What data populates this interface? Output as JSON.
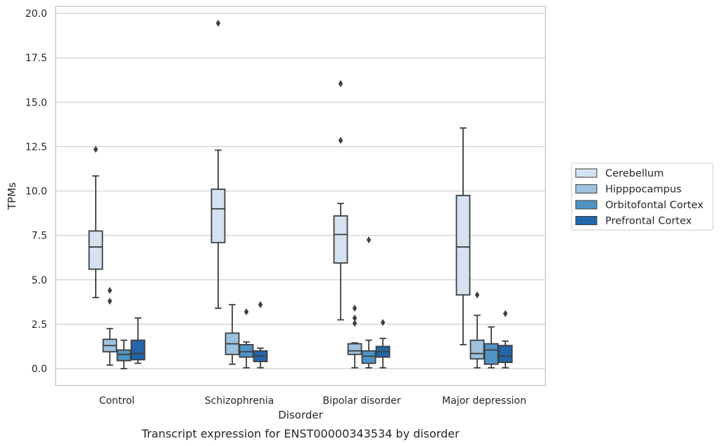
{
  "chart_data": {
    "type": "boxplot",
    "title": "",
    "caption": "Transcript expression for ENST00000343534 by disorder",
    "xlabel": "Disorder",
    "ylabel": "TPMs",
    "ylim": [
      -0.95,
      20.4
    ],
    "yticks": [
      "0.0",
      "2.5",
      "5.0",
      "7.5",
      "10.0",
      "12.5",
      "15.0",
      "17.5",
      "20.0"
    ],
    "grid": "horizontal",
    "legend_position": "right",
    "categories": [
      "Control",
      "Schizophrenia",
      "Bipolar disorder",
      "Major depression"
    ],
    "series": [
      {
        "name": "Cerebellum",
        "color": "#d4e2f1",
        "boxes": [
          {
            "q1": 5.6,
            "median": 6.85,
            "q3": 7.75,
            "whisker_low": 4.0,
            "whisker_high": 10.85,
            "outliers": [
              12.35
            ]
          },
          {
            "q1": 7.1,
            "median": 9.0,
            "q3": 10.1,
            "whisker_low": 3.4,
            "whisker_high": 12.3,
            "outliers": [
              19.45
            ]
          },
          {
            "q1": 5.95,
            "median": 7.55,
            "q3": 8.6,
            "whisker_low": 2.75,
            "whisker_high": 9.3,
            "outliers": [
              12.85,
              16.05
            ]
          },
          {
            "q1": 4.15,
            "median": 6.85,
            "q3": 9.75,
            "whisker_low": 1.35,
            "whisker_high": 13.55,
            "outliers": []
          }
        ]
      },
      {
        "name": "Hipppocampus",
        "color": "#9dc2de",
        "boxes": [
          {
            "q1": 0.95,
            "median": 1.3,
            "q3": 1.65,
            "whisker_low": 0.2,
            "whisker_high": 2.25,
            "outliers": [
              3.8,
              4.4
            ]
          },
          {
            "q1": 0.8,
            "median": 1.4,
            "q3": 2.0,
            "whisker_low": 0.25,
            "whisker_high": 3.6,
            "outliers": []
          },
          {
            "q1": 0.8,
            "median": 1.0,
            "q3": 1.4,
            "whisker_low": 0.05,
            "whisker_high": 1.45,
            "outliers": [
              2.55,
              2.85,
              3.4
            ]
          },
          {
            "q1": 0.55,
            "median": 0.85,
            "q3": 1.6,
            "whisker_low": 0.05,
            "whisker_high": 3.0,
            "outliers": [
              4.15
            ]
          }
        ]
      },
      {
        "name": "Orbitofontal Cortex",
        "color": "#5094c6",
        "boxes": [
          {
            "q1": 0.45,
            "median": 0.8,
            "q3": 1.05,
            "whisker_low": 0.0,
            "whisker_high": 1.6,
            "outliers": []
          },
          {
            "q1": 0.65,
            "median": 0.95,
            "q3": 1.35,
            "whisker_low": 0.05,
            "whisker_high": 1.5,
            "outliers": [
              3.2
            ]
          },
          {
            "q1": 0.3,
            "median": 0.7,
            "q3": 1.0,
            "whisker_low": 0.05,
            "whisker_high": 1.6,
            "outliers": [
              7.25
            ]
          },
          {
            "q1": 0.25,
            "median": 1.05,
            "q3": 1.4,
            "whisker_low": 0.05,
            "whisker_high": 2.35,
            "outliers": []
          }
        ]
      },
      {
        "name": "Prefrontal Cortex",
        "color": "#2366ac",
        "boxes": [
          {
            "q1": 0.5,
            "median": 0.85,
            "q3": 1.6,
            "whisker_low": 0.3,
            "whisker_high": 2.85,
            "outliers": []
          },
          {
            "q1": 0.4,
            "median": 0.7,
            "q3": 1.0,
            "whisker_low": 0.05,
            "whisker_high": 1.15,
            "outliers": [
              3.6
            ]
          },
          {
            "q1": 0.65,
            "median": 0.95,
            "q3": 1.25,
            "whisker_low": 0.05,
            "whisker_high": 1.7,
            "outliers": [
              2.6
            ]
          },
          {
            "q1": 0.35,
            "median": 0.7,
            "q3": 1.3,
            "whisker_low": 0.05,
            "whisker_high": 1.55,
            "outliers": [
              3.1
            ]
          }
        ]
      }
    ]
  }
}
